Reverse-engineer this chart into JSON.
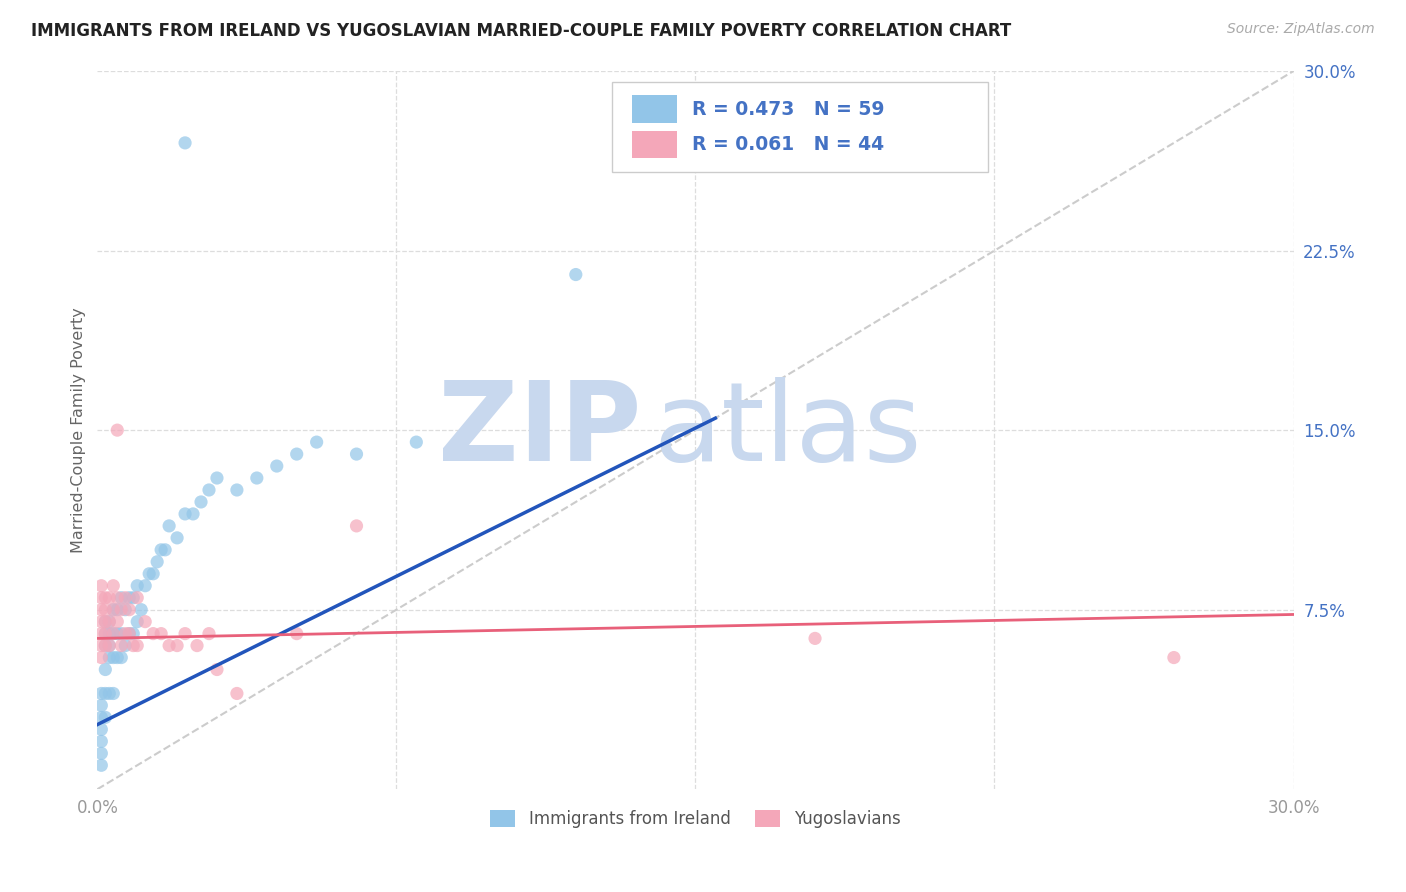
{
  "title": "IMMIGRANTS FROM IRELAND VS YUGOSLAVIAN MARRIED-COUPLE FAMILY POVERTY CORRELATION CHART",
  "source": "Source: ZipAtlas.com",
  "ylabel": "Married-Couple Family Poverty",
  "xlim": [
    0.0,
    0.3
  ],
  "ylim": [
    0.0,
    0.3
  ],
  "color_blue": "#92c5e8",
  "color_pink": "#f4a7b9",
  "color_blue_text": "#4472c4",
  "line_blue": "#2255bb",
  "line_pink": "#e8607a",
  "line_diag": "#cccccc",
  "watermark_zip": "ZIP",
  "watermark_atlas": "atlas",
  "watermark_color_zip": "#c8d8ee",
  "watermark_color_atlas": "#c8d8ee",
  "legend_label_blue": "Immigrants from Ireland",
  "legend_label_pink": "Yugoslavians",
  "ireland_x": [
    0.001,
    0.001,
    0.001,
    0.001,
    0.001,
    0.001,
    0.001,
    0.002,
    0.002,
    0.002,
    0.002,
    0.002,
    0.002,
    0.003,
    0.003,
    0.003,
    0.003,
    0.003,
    0.004,
    0.004,
    0.004,
    0.004,
    0.005,
    0.005,
    0.005,
    0.006,
    0.006,
    0.006,
    0.007,
    0.007,
    0.008,
    0.008,
    0.009,
    0.009,
    0.01,
    0.01,
    0.011,
    0.012,
    0.013,
    0.014,
    0.015,
    0.016,
    0.017,
    0.018,
    0.02,
    0.022,
    0.024,
    0.026,
    0.028,
    0.03,
    0.035,
    0.04,
    0.045,
    0.05,
    0.055,
    0.065,
    0.08,
    0.022,
    0.12
  ],
  "ireland_y": [
    0.01,
    0.015,
    0.02,
    0.025,
    0.03,
    0.035,
    0.04,
    0.03,
    0.04,
    0.05,
    0.06,
    0.065,
    0.07,
    0.04,
    0.055,
    0.06,
    0.065,
    0.07,
    0.04,
    0.055,
    0.065,
    0.075,
    0.055,
    0.065,
    0.075,
    0.055,
    0.065,
    0.08,
    0.06,
    0.075,
    0.065,
    0.08,
    0.065,
    0.08,
    0.07,
    0.085,
    0.075,
    0.085,
    0.09,
    0.09,
    0.095,
    0.1,
    0.1,
    0.11,
    0.105,
    0.115,
    0.115,
    0.12,
    0.125,
    0.13,
    0.125,
    0.13,
    0.135,
    0.14,
    0.145,
    0.14,
    0.145,
    0.27,
    0.215
  ],
  "yugo_x": [
    0.001,
    0.001,
    0.001,
    0.001,
    0.001,
    0.001,
    0.001,
    0.002,
    0.002,
    0.002,
    0.002,
    0.002,
    0.003,
    0.003,
    0.003,
    0.004,
    0.004,
    0.004,
    0.005,
    0.005,
    0.005,
    0.006,
    0.006,
    0.007,
    0.007,
    0.008,
    0.008,
    0.009,
    0.01,
    0.01,
    0.012,
    0.014,
    0.016,
    0.018,
    0.02,
    0.022,
    0.025,
    0.028,
    0.03,
    0.035,
    0.05,
    0.065,
    0.18,
    0.27
  ],
  "yugo_y": [
    0.055,
    0.06,
    0.065,
    0.07,
    0.075,
    0.08,
    0.085,
    0.06,
    0.065,
    0.07,
    0.075,
    0.08,
    0.06,
    0.07,
    0.08,
    0.065,
    0.075,
    0.085,
    0.07,
    0.08,
    0.15,
    0.06,
    0.075,
    0.065,
    0.08,
    0.065,
    0.075,
    0.06,
    0.06,
    0.08,
    0.07,
    0.065,
    0.065,
    0.06,
    0.06,
    0.065,
    0.06,
    0.065,
    0.05,
    0.04,
    0.065,
    0.11,
    0.063,
    0.055
  ],
  "blue_line_x": [
    0.0,
    0.155
  ],
  "blue_line_y": [
    0.027,
    0.155
  ],
  "pink_line_x": [
    0.0,
    0.3
  ],
  "pink_line_y": [
    0.063,
    0.073
  ]
}
